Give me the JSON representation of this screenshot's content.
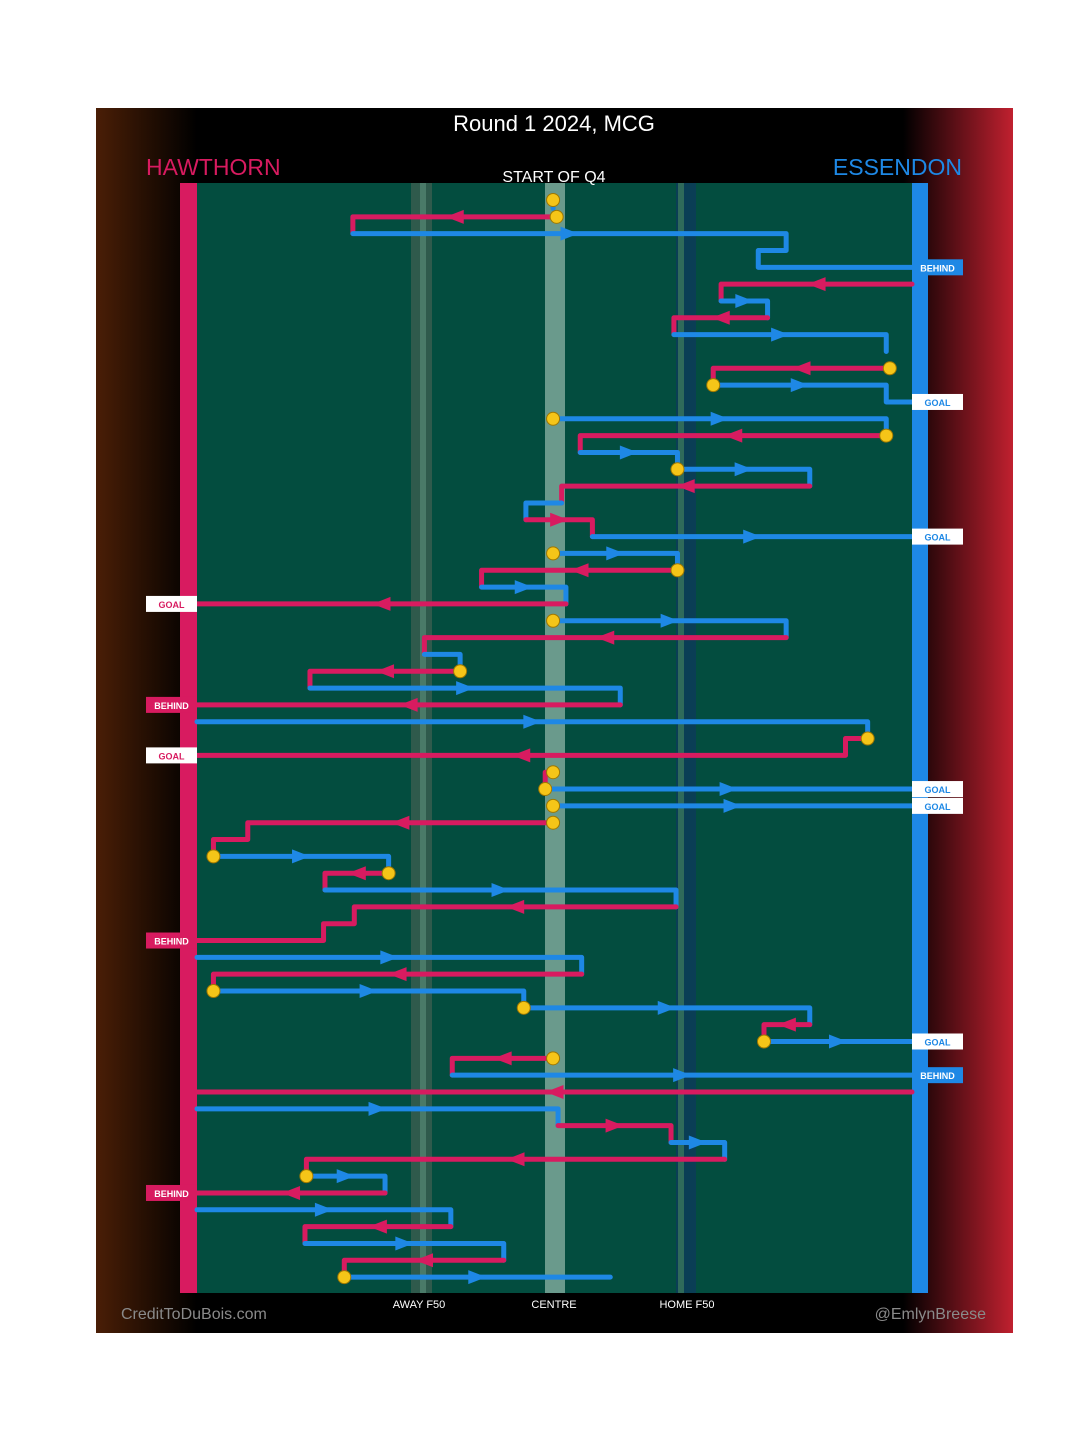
{
  "chart_data": {
    "type": "line",
    "title": "Round 1 2024, MCG",
    "subtitle": "START OF Q4",
    "teams": {
      "home": {
        "name": "HAWTHORN",
        "color": "#d81b60"
      },
      "away": {
        "name": "ESSENDON",
        "color": "#1e88e5"
      }
    },
    "x_labels": [
      "AWAY F50",
      "CENTRE",
      "HOME F50"
    ],
    "footer": {
      "left": "CreditToDuBois.com",
      "right": "@EmlynBreese"
    },
    "colors": {
      "field": "#034d3f",
      "home": "#d81b60",
      "away": "#1e88e5",
      "stoppage": "#f5c518"
    },
    "note": "x: 0 = Hawthorn goal line, 100 = Essendon goal line; y: chain sequence index (0 = start of quarter)",
    "chains": [
      {
        "team": "away",
        "pts": [
          [
            49.8,
            0
          ],
          [
            49.8,
            0.5
          ]
        ],
        "start": "stoppage"
      },
      {
        "team": "home",
        "pts": [
          [
            50.3,
            1
          ],
          [
            21.8,
            1
          ],
          [
            21.8,
            2
          ]
        ],
        "start": "stoppage"
      },
      {
        "team": "away",
        "pts": [
          [
            21.8,
            2
          ],
          [
            82.4,
            2
          ],
          [
            82.4,
            3
          ],
          [
            78.5,
            3
          ],
          [
            78.5,
            4
          ],
          [
            100,
            4
          ]
        ],
        "result": "BEHIND"
      },
      {
        "team": "home",
        "pts": [
          [
            100,
            5
          ],
          [
            73.3,
            5
          ],
          [
            73.3,
            6
          ]
        ]
      },
      {
        "team": "away",
        "pts": [
          [
            73.3,
            6
          ],
          [
            79.8,
            6
          ],
          [
            79.8,
            7
          ]
        ]
      },
      {
        "team": "home",
        "pts": [
          [
            79.8,
            7
          ],
          [
            66.7,
            7
          ],
          [
            66.7,
            8
          ]
        ]
      },
      {
        "team": "away",
        "pts": [
          [
            66.7,
            8
          ],
          [
            96.4,
            8
          ],
          [
            96.4,
            9
          ]
        ]
      },
      {
        "team": "home",
        "pts": [
          [
            96.9,
            10
          ],
          [
            72.2,
            10
          ],
          [
            72.2,
            11
          ]
        ],
        "start": "stoppage"
      },
      {
        "team": "away",
        "pts": [
          [
            72.2,
            11
          ],
          [
            96.4,
            11
          ],
          [
            96.4,
            12
          ],
          [
            100,
            12
          ]
        ],
        "start": "stoppage",
        "result": "GOAL"
      },
      {
        "team": "away",
        "pts": [
          [
            49.8,
            13
          ],
          [
            96.4,
            13
          ],
          [
            96.4,
            14
          ]
        ],
        "start": "stoppage"
      },
      {
        "team": "home",
        "pts": [
          [
            96.4,
            14
          ],
          [
            53.6,
            14
          ],
          [
            53.6,
            15
          ]
        ],
        "start": "stoppage"
      },
      {
        "team": "away",
        "pts": [
          [
            53.6,
            15
          ],
          [
            67.2,
            15
          ],
          [
            67.2,
            16
          ]
        ]
      },
      {
        "team": "away",
        "pts": [
          [
            67.2,
            16
          ],
          [
            85.7,
            16
          ],
          [
            85.7,
            17
          ]
        ],
        "start": "stoppage"
      },
      {
        "team": "home",
        "pts": [
          [
            85.7,
            17
          ],
          [
            51.0,
            17
          ],
          [
            51.0,
            18
          ]
        ]
      },
      {
        "team": "away",
        "pts": [
          [
            51.0,
            18
          ],
          [
            46.0,
            18
          ],
          [
            46.0,
            19
          ]
        ]
      },
      {
        "team": "home",
        "pts": [
          [
            46.0,
            19
          ],
          [
            55.3,
            19
          ],
          [
            55.3,
            20
          ]
        ]
      },
      {
        "team": "away",
        "pts": [
          [
            55.3,
            20
          ],
          [
            100,
            20
          ]
        ],
        "result": "GOAL"
      },
      {
        "team": "away",
        "pts": [
          [
            49.8,
            21
          ],
          [
            67.2,
            21
          ],
          [
            67.2,
            22
          ]
        ],
        "start": "stoppage"
      },
      {
        "team": "home",
        "pts": [
          [
            67.2,
            22
          ],
          [
            39.8,
            22
          ],
          [
            39.8,
            23
          ]
        ],
        "start": "stoppage"
      },
      {
        "team": "away",
        "pts": [
          [
            39.8,
            23
          ],
          [
            51.6,
            23
          ],
          [
            51.6,
            24
          ]
        ]
      },
      {
        "team": "home",
        "pts": [
          [
            51.6,
            24
          ],
          [
            0,
            24
          ]
        ],
        "result": "GOAL"
      },
      {
        "team": "away",
        "pts": [
          [
            49.8,
            25
          ],
          [
            82.4,
            25
          ],
          [
            82.4,
            26
          ]
        ],
        "start": "stoppage"
      },
      {
        "team": "home",
        "pts": [
          [
            82.4,
            26
          ],
          [
            31.8,
            26
          ],
          [
            31.8,
            27
          ]
        ]
      },
      {
        "team": "away",
        "pts": [
          [
            31.8,
            27
          ],
          [
            36.8,
            27
          ],
          [
            36.8,
            28
          ]
        ]
      },
      {
        "team": "home",
        "pts": [
          [
            36.8,
            28
          ],
          [
            15.8,
            28
          ],
          [
            15.8,
            29
          ]
        ],
        "start": "stoppage"
      },
      {
        "team": "away",
        "pts": [
          [
            15.8,
            29
          ],
          [
            59.2,
            29
          ],
          [
            59.2,
            30
          ]
        ]
      },
      {
        "team": "home",
        "pts": [
          [
            59.2,
            30
          ],
          [
            0,
            30
          ]
        ],
        "result": "BEHIND"
      },
      {
        "team": "away",
        "pts": [
          [
            0,
            31
          ],
          [
            93.8,
            31
          ],
          [
            93.8,
            32
          ]
        ]
      },
      {
        "team": "home",
        "pts": [
          [
            93.8,
            32
          ],
          [
            90.7,
            32
          ],
          [
            90.7,
            33
          ],
          [
            0,
            33
          ]
        ],
        "start": "stoppage",
        "result": "GOAL"
      },
      {
        "team": "home",
        "pts": [
          [
            49.8,
            34
          ],
          [
            48.7,
            34
          ],
          [
            48.7,
            35
          ]
        ],
        "start": "stoppage"
      },
      {
        "team": "away",
        "pts": [
          [
            48.7,
            35
          ],
          [
            100,
            35
          ]
        ],
        "start": "stoppage",
        "result": "GOAL"
      },
      {
        "team": "away",
        "pts": [
          [
            49.8,
            36
          ],
          [
            100,
            36
          ]
        ],
        "start": "stoppage",
        "result": "GOAL"
      },
      {
        "team": "home",
        "pts": [
          [
            49.8,
            37
          ],
          [
            7.1,
            37
          ],
          [
            7.1,
            38
          ],
          [
            2.3,
            38
          ],
          [
            2.3,
            39
          ]
        ],
        "start": "stoppage"
      },
      {
        "team": "away",
        "pts": [
          [
            2.3,
            39
          ],
          [
            26.8,
            39
          ],
          [
            26.8,
            40
          ]
        ],
        "start": "stoppage"
      },
      {
        "team": "home",
        "pts": [
          [
            26.8,
            40
          ],
          [
            17.9,
            40
          ],
          [
            17.9,
            41
          ]
        ],
        "start": "stoppage"
      },
      {
        "team": "away",
        "pts": [
          [
            17.9,
            41
          ],
          [
            67.0,
            41
          ],
          [
            67.0,
            42
          ]
        ]
      },
      {
        "team": "home",
        "pts": [
          [
            67.0,
            42
          ],
          [
            22.0,
            42
          ],
          [
            22.0,
            43
          ],
          [
            17.7,
            43
          ],
          [
            17.7,
            44
          ],
          [
            0,
            44
          ]
        ],
        "result": "BEHIND"
      },
      {
        "team": "away",
        "pts": [
          [
            0,
            45
          ],
          [
            53.8,
            45
          ],
          [
            53.8,
            46
          ]
        ]
      },
      {
        "team": "home",
        "pts": [
          [
            53.8,
            46
          ],
          [
            2.3,
            46
          ],
          [
            2.3,
            47
          ]
        ]
      },
      {
        "team": "away",
        "pts": [
          [
            2.3,
            47
          ],
          [
            45.7,
            47
          ],
          [
            45.7,
            48
          ]
        ],
        "start": "stoppage"
      },
      {
        "team": "away",
        "pts": [
          [
            45.7,
            48
          ],
          [
            85.7,
            48
          ],
          [
            85.7,
            49
          ]
        ],
        "start": "stoppage"
      },
      {
        "team": "home",
        "pts": [
          [
            85.7,
            49
          ],
          [
            79.3,
            49
          ],
          [
            79.3,
            50
          ]
        ]
      },
      {
        "team": "away",
        "pts": [
          [
            79.3,
            50
          ],
          [
            100,
            50
          ]
        ],
        "start": "stoppage",
        "result": "GOAL"
      },
      {
        "team": "home",
        "pts": [
          [
            49.8,
            51
          ],
          [
            35.7,
            51
          ],
          [
            35.7,
            52
          ]
        ],
        "start": "stoppage"
      },
      {
        "team": "away",
        "pts": [
          [
            35.7,
            52
          ],
          [
            100,
            52
          ]
        ],
        "result": "BEHIND"
      },
      {
        "team": "home",
        "pts": [
          [
            100,
            53
          ],
          [
            0,
            53
          ]
        ]
      },
      {
        "team": "away",
        "pts": [
          [
            0,
            54
          ],
          [
            50.5,
            54
          ],
          [
            50.5,
            55
          ]
        ]
      },
      {
        "team": "home",
        "pts": [
          [
            50.5,
            55
          ],
          [
            66.3,
            55
          ],
          [
            66.3,
            56
          ]
        ]
      },
      {
        "team": "away",
        "pts": [
          [
            66.3,
            56
          ],
          [
            73.8,
            56
          ],
          [
            73.8,
            57
          ]
        ]
      },
      {
        "team": "home",
        "pts": [
          [
            73.8,
            57
          ],
          [
            15.3,
            57
          ],
          [
            15.3,
            58
          ]
        ]
      },
      {
        "team": "away",
        "pts": [
          [
            15.3,
            58
          ],
          [
            26.3,
            58
          ],
          [
            26.3,
            59
          ]
        ],
        "start": "stoppage"
      },
      {
        "team": "home",
        "pts": [
          [
            26.3,
            59
          ],
          [
            0,
            59
          ]
        ],
        "result": "BEHIND"
      },
      {
        "team": "away",
        "pts": [
          [
            0,
            60
          ],
          [
            35.5,
            60
          ],
          [
            35.5,
            61
          ]
        ]
      },
      {
        "team": "home",
        "pts": [
          [
            35.5,
            61
          ],
          [
            15.1,
            61
          ],
          [
            15.1,
            62
          ]
        ]
      },
      {
        "team": "away",
        "pts": [
          [
            15.1,
            62
          ],
          [
            42.9,
            62
          ],
          [
            42.9,
            63
          ]
        ]
      },
      {
        "team": "home",
        "pts": [
          [
            42.9,
            63
          ],
          [
            20.6,
            63
          ],
          [
            20.6,
            64
          ]
        ]
      },
      {
        "team": "away",
        "pts": [
          [
            20.6,
            64
          ],
          [
            57.8,
            64
          ]
        ],
        "start": "stoppage"
      }
    ]
  }
}
